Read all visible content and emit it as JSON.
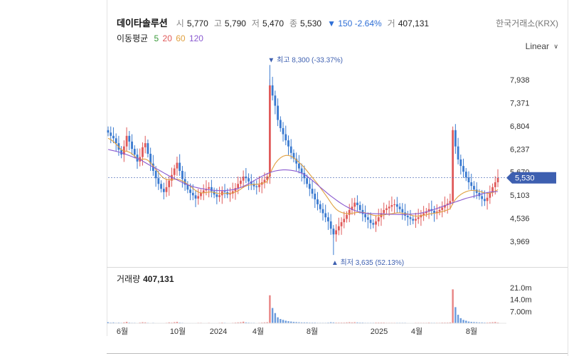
{
  "header": {
    "name": "데이타솔루션",
    "open_label": "시",
    "open": "5,770",
    "high_label": "고",
    "high": "5,790",
    "low_label": "저",
    "low": "5,470",
    "close_label": "종",
    "close": "5,530",
    "change": "▼ 150 -2.64%",
    "volume_label": "거",
    "volume": "407,131"
  },
  "exchange": "한국거래소(KRX)",
  "moving_avg": {
    "label": "이동평균",
    "periods": [
      {
        "value": "5",
        "color": "#3a9a3a"
      },
      {
        "value": "20",
        "color": "#e05a5a"
      },
      {
        "value": "60",
        "color": "#e0a040"
      },
      {
        "value": "120",
        "color": "#8a5ad0"
      }
    ]
  },
  "scale_mode": "Linear",
  "colors": {
    "up": "#e05a5a",
    "down": "#3a7ad0",
    "current": "#3d5fb0"
  },
  "chart_data": {
    "type": "candlestick",
    "price_axis": {
      "ticks": [
        "7,938",
        "7,371",
        "6,804",
        "6,237",
        "5,670",
        "5,103",
        "4,536",
        "3,969"
      ],
      "current_price": "5,530"
    },
    "max_annotation": "최고 8,300 (-33.37%)",
    "min_annotation": "최저 3,635 (52.13%)",
    "x_labels": [
      "6월",
      "10월",
      "2024",
      "4월",
      "8월",
      "2025",
      "4월",
      "8월"
    ],
    "price_series": [
      6640,
      6560,
      6500,
      6380,
      6220,
      6100,
      6300,
      6560,
      6420,
      6240,
      6100,
      5930,
      6040,
      6280,
      6380,
      6120,
      5880,
      5700,
      5520,
      5380,
      5260,
      5180,
      5300,
      5460,
      5600,
      5760,
      5900,
      5700,
      5500,
      5360,
      5240,
      5160,
      5100,
      5020,
      5080,
      5160,
      5220,
      5260,
      5300,
      5200,
      5120,
      5060,
      5100,
      5200,
      5180,
      5120,
      5140,
      5200,
      5280,
      5380,
      5460,
      5560,
      5520,
      5440,
      5380,
      5320,
      5300,
      5360,
      5420,
      5480,
      5560,
      7800,
      7550,
      7300,
      6950,
      6750,
      6600,
      6450,
      6300,
      6140,
      6000,
      5880,
      5760,
      5650,
      5520,
      5380,
      5260,
      5140,
      5000,
      4880,
      4760,
      4660,
      4560,
      4460,
      4280,
      4140,
      4240,
      4340,
      4440,
      4520,
      4620,
      4740,
      4820,
      4920,
      4860,
      4740,
      4640,
      4560,
      4500,
      4420,
      4380,
      4460,
      4560,
      4660,
      4740,
      4780,
      4820,
      4860,
      4880,
      4820,
      4760,
      4680,
      4600,
      4560,
      4520,
      4480,
      4520,
      4560,
      4620,
      4660,
      4700,
      4760,
      4720,
      4660,
      4700,
      4740,
      4800,
      4860,
      4900,
      4960,
      6700,
      6300,
      5980,
      5820,
      5680,
      5540,
      5420,
      5330,
      5240,
      5160,
      5080,
      5010,
      4960,
      5040,
      5160,
      5300,
      5420,
      5530
    ],
    "ma20_series": [
      6500,
      6470,
      6420,
      6360,
      6290,
      6220,
      6190,
      6180,
      6160,
      6120,
      6060,
      6000,
      5980,
      5990,
      5990,
      5960,
      5900,
      5820,
      5740,
      5660,
      5580,
      5520,
      5490,
      5480,
      5480,
      5490,
      5500,
      5480,
      5450,
      5420,
      5370,
      5320,
      5270,
      5220,
      5180,
      5160,
      5160,
      5170,
      5180,
      5180,
      5170,
      5150,
      5140,
      5140,
      5150,
      5150,
      5150,
      5160,
      5180,
      5210,
      5250,
      5300,
      5330,
      5350,
      5360,
      5370,
      5370,
      5380,
      5390,
      5410,
      5440,
      5620,
      5760,
      5880,
      5960,
      6020,
      6060,
      6080,
      6080,
      6060,
      6020,
      5970,
      5910,
      5850,
      5780,
      5700,
      5620,
      5540,
      5460,
      5380,
      5290,
      5200,
      5110,
      5020,
      4920,
      4830,
      4760,
      4710,
      4680,
      4660,
      4650,
      4650,
      4660,
      4670,
      4680,
      4680,
      4680,
      4670,
      4650,
      4630,
      4610,
      4600,
      4600,
      4610,
      4620,
      4630,
      4640,
      4650,
      4660,
      4670,
      4670,
      4660,
      4650,
      4640,
      4620,
      4600,
      4590,
      4590,
      4600,
      4610,
      4620,
      4640,
      4650,
      4660,
      4670,
      4680,
      4700,
      4720,
      4740,
      4770,
      4900,
      5000,
      5070,
      5120,
      5160,
      5190,
      5210,
      5220,
      5220,
      5210,
      5200,
      5180,
      5160,
      5150,
      5150,
      5170,
      5200,
      5240
    ],
    "volume_ticks": [
      "21.0m",
      "14.0m",
      "7.00m"
    ],
    "volume_title": "거래량",
    "volume_value": "407,131",
    "volume_series": [
      0.6,
      0.4,
      0.5,
      0.3,
      0.4,
      0.3,
      0.5,
      0.8,
      0.4,
      0.3,
      0.3,
      0.2,
      0.4,
      0.6,
      0.5,
      0.3,
      0.2,
      0.3,
      0.2,
      0.2,
      0.2,
      0.2,
      0.3,
      0.5,
      0.4,
      0.6,
      0.8,
      0.4,
      0.3,
      0.2,
      0.2,
      0.2,
      0.2,
      0.2,
      0.3,
      0.3,
      0.2,
      0.2,
      0.3,
      0.2,
      0.2,
      0.2,
      0.3,
      0.4,
      0.3,
      0.2,
      0.2,
      0.3,
      0.4,
      0.5,
      0.6,
      0.9,
      0.5,
      0.4,
      0.3,
      0.3,
      0.2,
      0.3,
      0.4,
      0.5,
      0.6,
      16.5,
      9.0,
      6.0,
      3.5,
      2.5,
      2.0,
      1.5,
      1.2,
      1.0,
      0.8,
      0.7,
      0.6,
      0.5,
      0.5,
      0.5,
      0.4,
      0.4,
      0.4,
      0.3,
      0.3,
      0.3,
      0.3,
      0.4,
      0.6,
      0.5,
      0.4,
      0.4,
      0.4,
      0.4,
      0.5,
      0.6,
      0.5,
      0.6,
      0.5,
      0.4,
      0.4,
      0.3,
      0.3,
      0.3,
      0.3,
      0.4,
      0.4,
      0.4,
      0.4,
      0.3,
      0.3,
      0.3,
      0.3,
      0.3,
      0.3,
      0.3,
      0.3,
      0.2,
      0.2,
      0.2,
      0.3,
      0.3,
      0.3,
      0.3,
      0.3,
      0.4,
      0.3,
      0.3,
      0.3,
      0.3,
      0.4,
      0.4,
      0.4,
      0.5,
      20.0,
      9.5,
      5.0,
      3.0,
      2.0,
      1.5,
      1.0,
      0.8,
      0.7,
      0.6,
      0.5,
      0.5,
      0.4,
      0.4,
      0.5,
      0.6,
      0.7,
      0.41
    ]
  }
}
